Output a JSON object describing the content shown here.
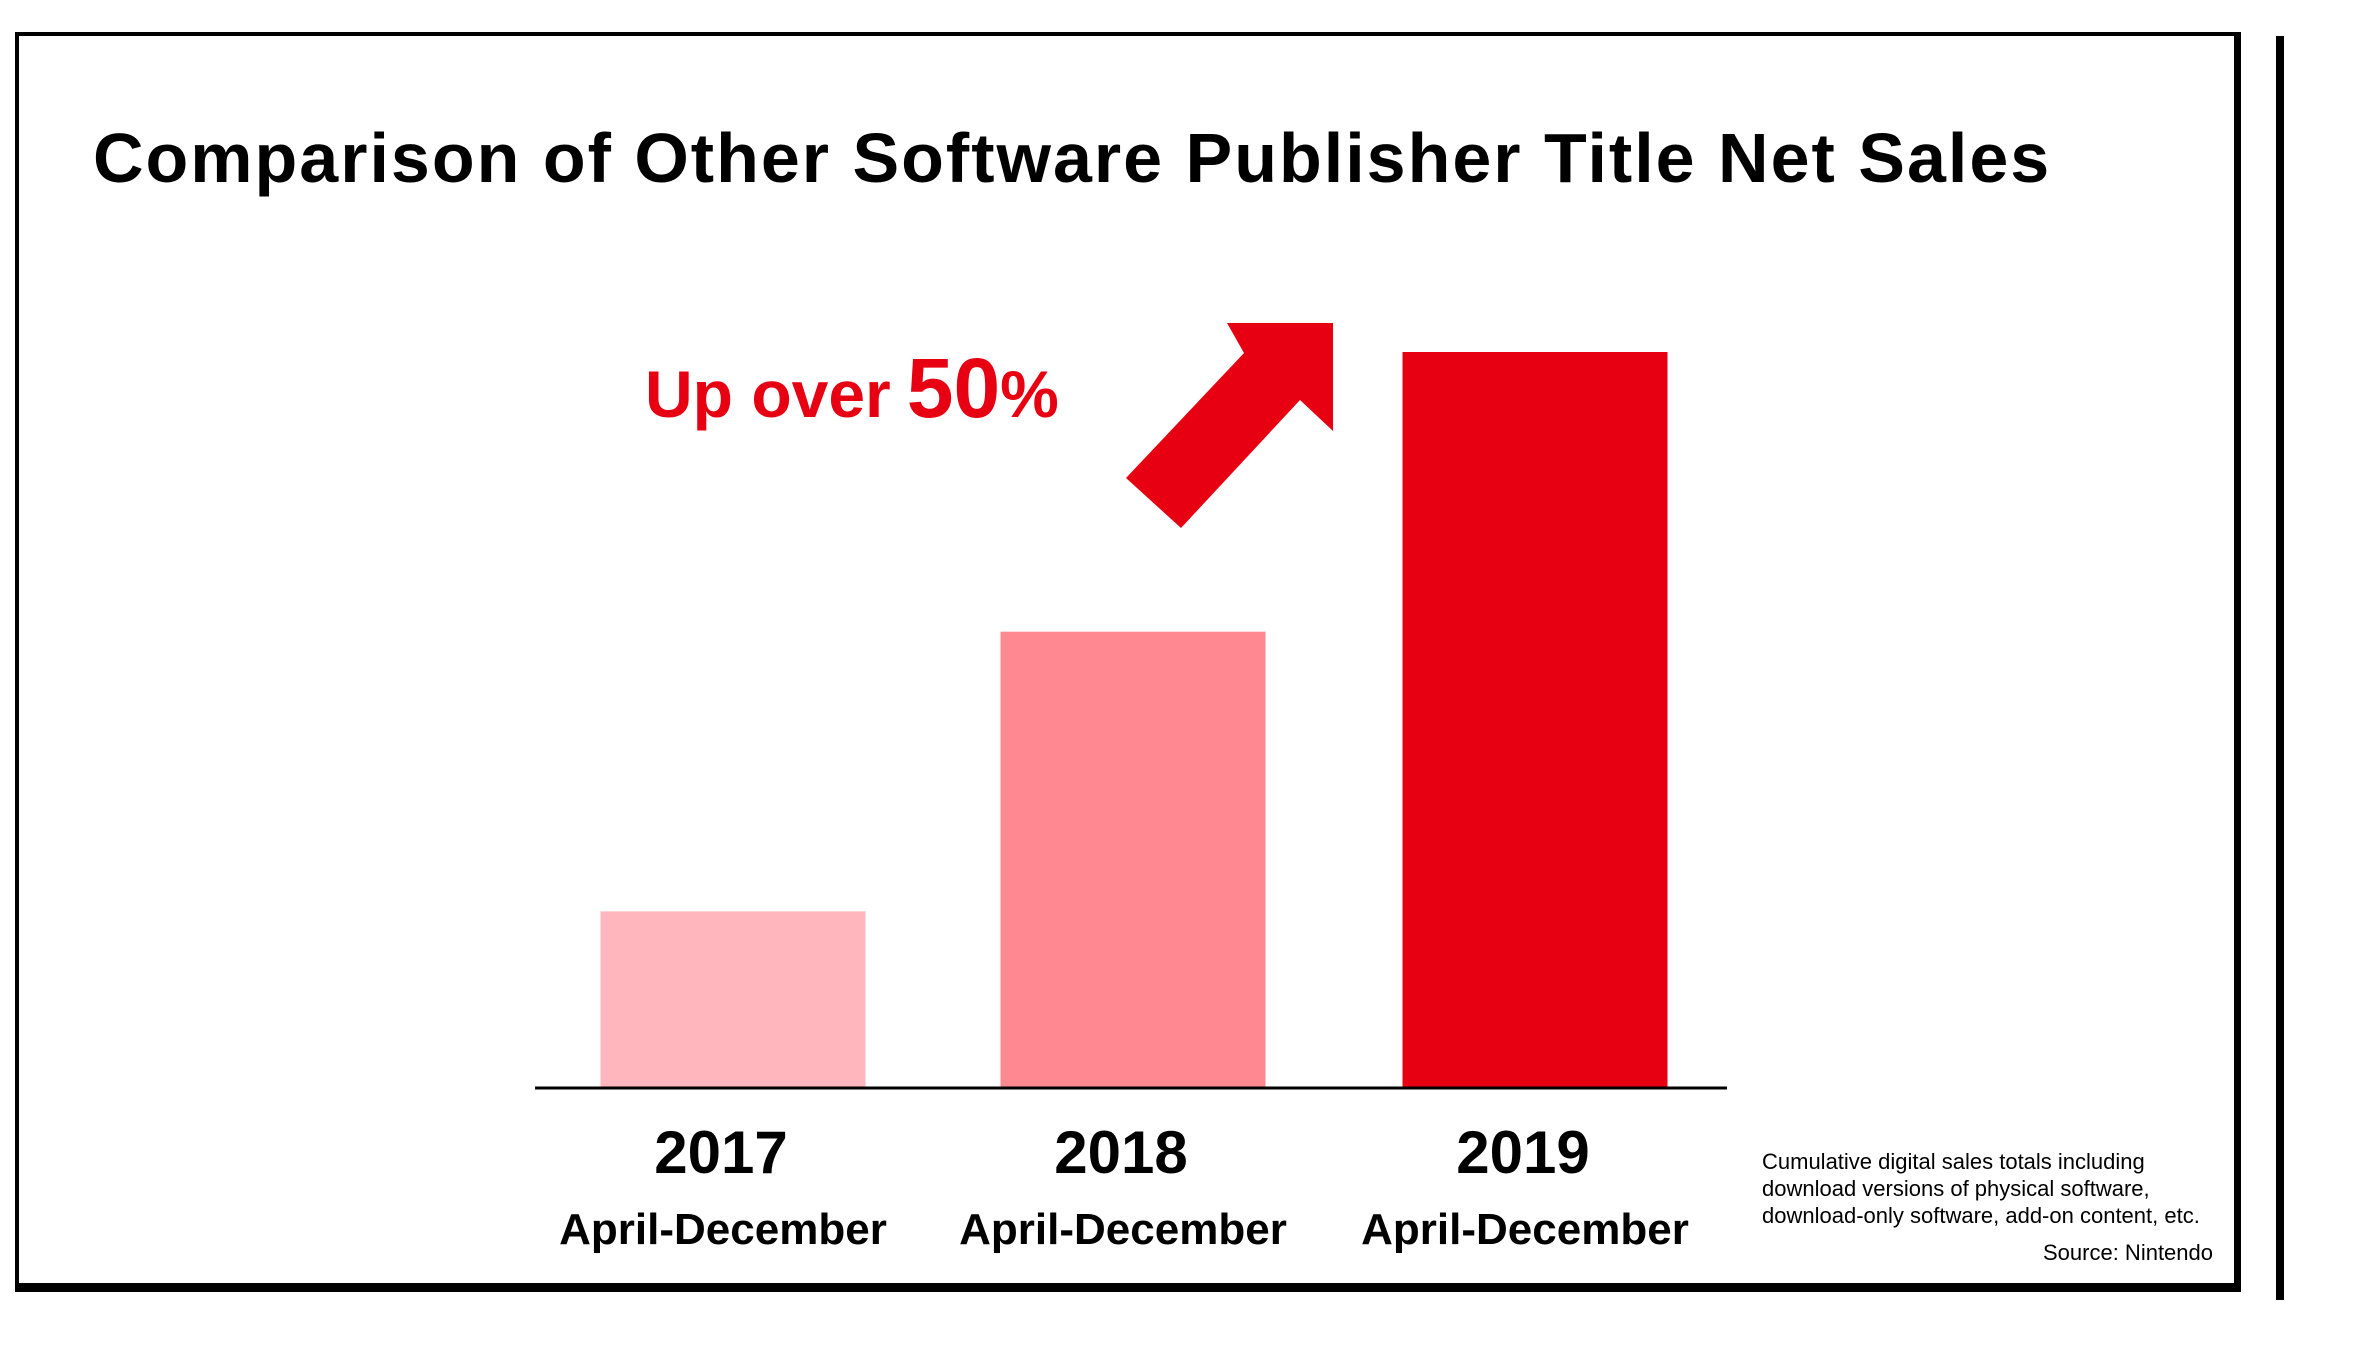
{
  "chart_data": {
    "type": "bar",
    "title": "Comparison of Other Software Publisher Title Net Sales",
    "categories": [
      "2017",
      "2018",
      "2019"
    ],
    "category_sublabels": [
      "April-December",
      "April-December",
      "April-December"
    ],
    "values": [
      24,
      62,
      100
    ],
    "ylim": [
      0,
      100
    ],
    "bar_colors": [
      "#ffb6bd",
      "#ff8891",
      "#e60012"
    ],
    "xlabel": "",
    "ylabel": "",
    "grid": false,
    "annotation": {
      "lead": "Up over",
      "value": "50",
      "symbol": "%",
      "color": "#e60012",
      "arrow_icon": "up-right-arrow-icon"
    }
  },
  "footnote": {
    "lines": [
      "Cumulative digital sales totals including",
      "download versions of physical software,",
      "download-only software, add-on content, etc."
    ],
    "source": "Source: Nintendo"
  },
  "colors": {
    "accent": "#e60012",
    "text": "#000000",
    "background": "#ffffff"
  }
}
